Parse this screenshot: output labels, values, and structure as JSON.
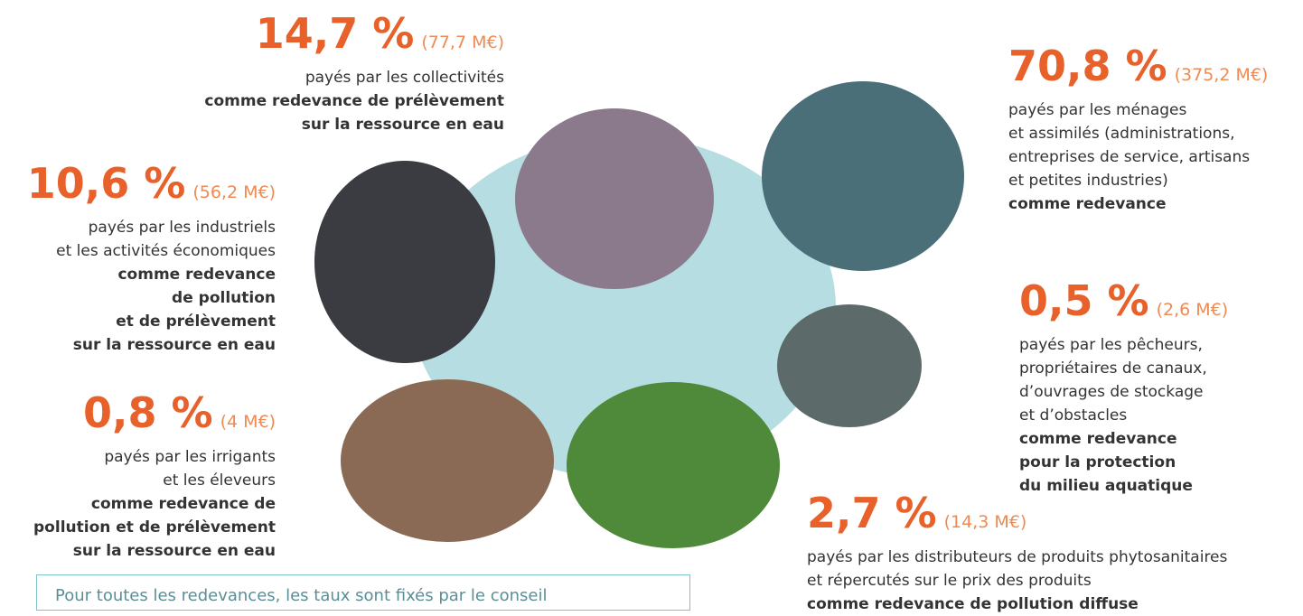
{
  "items": [
    {
      "percent": "14,7 %",
      "amount": "(77,7 M€)",
      "lines": [
        "payés par les collectivités"
      ],
      "bold_lines": [
        "comme redevance de prélèvement",
        "sur la ressource en eau"
      ]
    },
    {
      "percent": "10,6 %",
      "amount": "(56,2 M€)",
      "lines": [
        "payés par les industriels",
        "et les activités économiques"
      ],
      "bold_lines": [
        "comme redevance",
        "de pollution",
        "et de prélèvement",
        "sur la ressource en eau"
      ]
    },
    {
      "percent": "0,8 %",
      "amount": "(4 M€)",
      "lines": [
        "payés par les irrigants",
        "et les éleveurs"
      ],
      "bold_lines": [
        "comme redevance de",
        "pollution et de prélèvement",
        "sur la ressource en eau"
      ]
    },
    {
      "percent": "70,8 %",
      "amount": "(375,2 M€)",
      "lines": [
        "payés par les ménages",
        "et assimilés (administrations,",
        "entreprises de service, artisans",
        "et petites industries)"
      ],
      "bold_lines": [
        "comme redevance"
      ]
    },
    {
      "percent": "0,5 %",
      "amount": "(2,6 M€)",
      "lines": [
        "payés par les pêcheurs,",
        "propriétaires de canaux,",
        "d’ouvrages de stockage",
        "et d’obstacles"
      ],
      "bold_lines": [
        "comme redevance",
        "pour la protection",
        "du milieu aquatique"
      ]
    },
    {
      "percent": "2,7 %",
      "amount": "(14,3 M€)",
      "lines": [
        "payés par les distributeurs de produits phytosanitaires",
        "et répercutés sur le prix des produits"
      ],
      "bold_lines": [
        "comme redevance de pollution diffuse"
      ]
    }
  ],
  "note": "Pour toutes les redevances, les taux sont fixés par le conseil"
}
